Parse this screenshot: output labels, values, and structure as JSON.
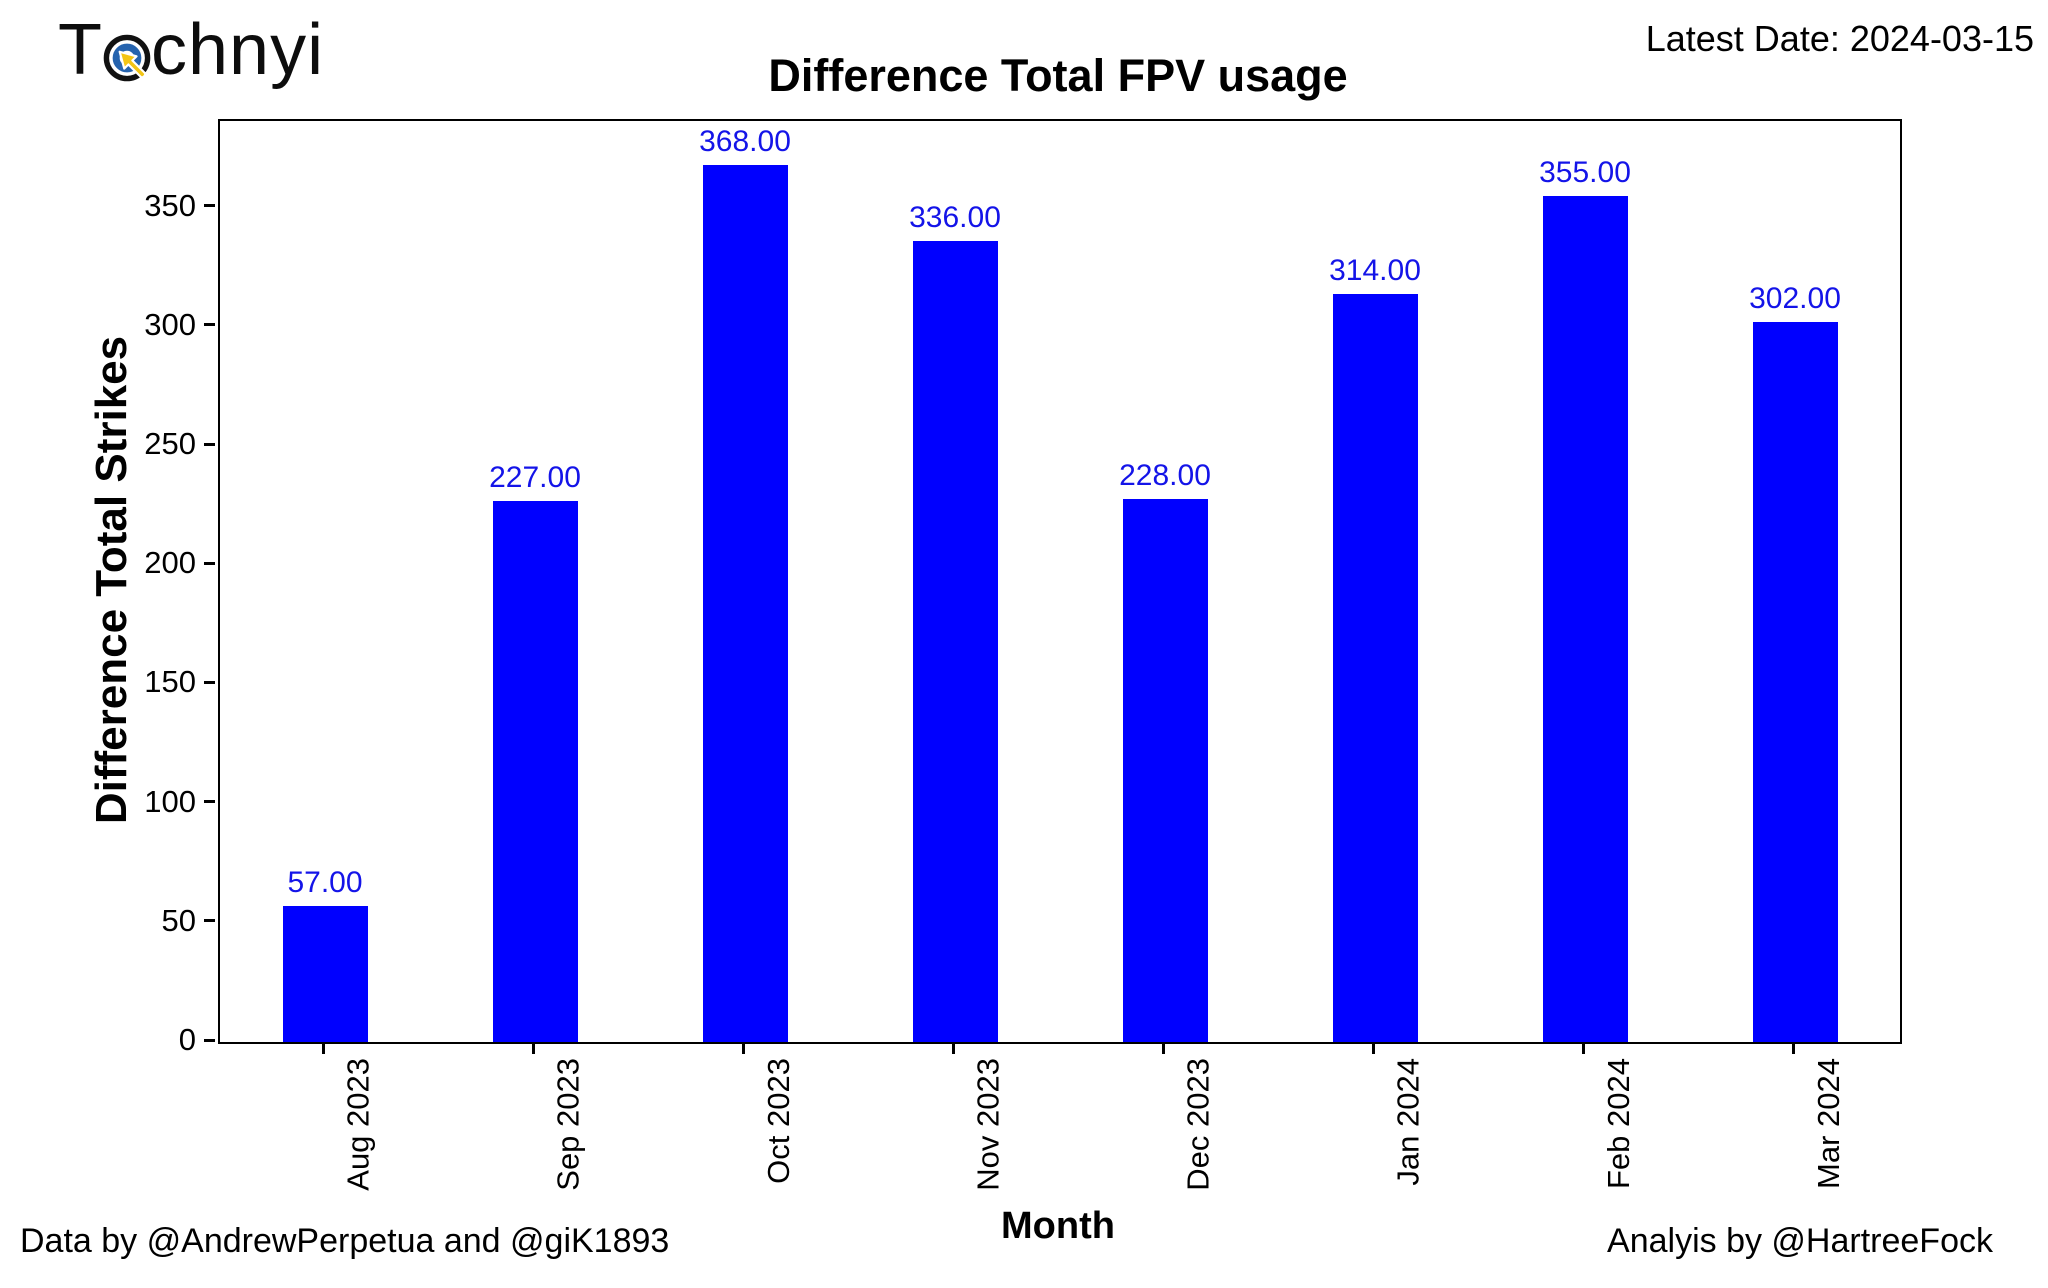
{
  "logo": {
    "prefix": "T",
    "suffix": "chnyi",
    "icon_outer_color": "#111111",
    "icon_inner_color": "#2563AE",
    "icon_cursor_color": "#F3C515"
  },
  "header": {
    "latest_date_label": "Latest Date: 2024-03-15"
  },
  "footer": {
    "left": "Data by @AndrewPerpetua and @giK1893",
    "right": "Analyis by @HartreeFock"
  },
  "chart_data": {
    "type": "bar",
    "title": "Difference Total FPV usage",
    "xlabel": "Month",
    "ylabel": "Difference Total Strikes",
    "categories": [
      "Aug 2023",
      "Sep 2023",
      "Oct 2023",
      "Nov 2023",
      "Dec 2023",
      "Jan 2024",
      "Feb 2024",
      "Mar 2024"
    ],
    "values": [
      57,
      227,
      368,
      336,
      228,
      314,
      355,
      302
    ],
    "value_labels": [
      "57.00",
      "227.00",
      "368.00",
      "336.00",
      "228.00",
      "314.00",
      "355.00",
      "302.00"
    ],
    "yticks": [
      0,
      50,
      100,
      150,
      200,
      250,
      300,
      350
    ],
    "ylim": [
      0,
      386.4
    ],
    "bar_color": "#0000FF",
    "value_label_color": "#1414E8",
    "grid": false,
    "legend": null
  }
}
